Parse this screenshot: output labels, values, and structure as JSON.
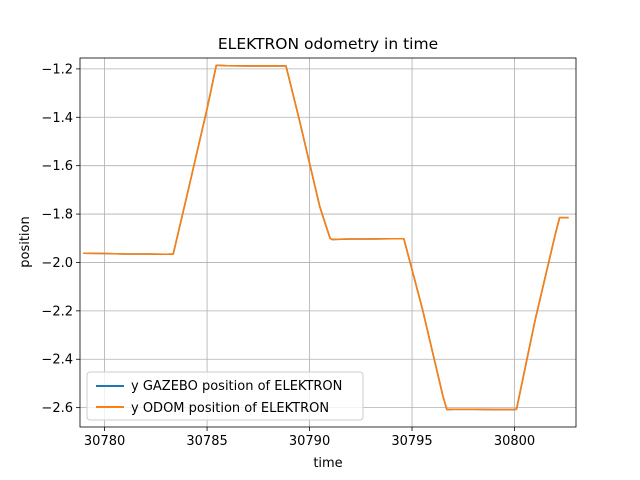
{
  "chart_data": {
    "type": "line",
    "title": "ELEKTRON odometry in time",
    "xlabel": "time",
    "ylabel": "position",
    "xlim": [
      30778.8,
      30803.0
    ],
    "ylim": [
      -2.68,
      -1.155
    ],
    "xticks": [
      30780,
      30785,
      30790,
      30795,
      30800
    ],
    "xtick_labels": [
      "30780",
      "30785",
      "30790",
      "30795",
      "30800"
    ],
    "yticks": [
      -1.2,
      -1.4,
      -1.6,
      -1.8,
      -2.0,
      -2.2,
      -2.4,
      -2.6
    ],
    "ytick_labels": [
      "−1.2",
      "−1.4",
      "−1.6",
      "−1.8",
      "−2.0",
      "−2.2",
      "−2.4",
      "−2.6"
    ],
    "grid": true,
    "legend_position": "lower-left",
    "series": [
      {
        "name": "y GAZEBO position of ELEKTRON",
        "color": "#1f77b4",
        "x": [
          30779.0,
          30780.0,
          30781.0,
          30782.0,
          30783.0,
          30783.35,
          30784.0,
          30785.0,
          30785.45,
          30786.0,
          30787.0,
          30788.0,
          30788.85,
          30789.5,
          30790.5,
          30791.0,
          30791.1,
          30792.0,
          30793.0,
          30794.0,
          30794.6,
          30795.5,
          30796.5,
          30796.7,
          30797.0,
          30798.0,
          30799.0,
          30800.0,
          30800.1,
          30801.0,
          30802.0,
          30802.2,
          30802.6
        ],
        "y": [
          -1.962,
          -1.963,
          -1.965,
          -1.965,
          -1.966,
          -1.965,
          -1.73,
          -1.365,
          -1.185,
          -1.187,
          -1.188,
          -1.188,
          -1.188,
          -1.41,
          -1.77,
          -1.9,
          -1.905,
          -1.903,
          -1.903,
          -1.902,
          -1.902,
          -2.19,
          -2.55,
          -2.608,
          -2.607,
          -2.607,
          -2.608,
          -2.608,
          -2.606,
          -2.24,
          -1.88,
          -1.815,
          -1.815
        ]
      },
      {
        "name": "y ODOM position of ELEKTRON",
        "color": "#ff7f0e",
        "x": [
          30779.0,
          30780.0,
          30781.0,
          30782.0,
          30783.0,
          30783.35,
          30784.0,
          30785.0,
          30785.45,
          30786.0,
          30787.0,
          30788.0,
          30788.85,
          30789.5,
          30790.5,
          30791.0,
          30791.1,
          30792.0,
          30793.0,
          30794.0,
          30794.6,
          30795.5,
          30796.5,
          30796.7,
          30797.0,
          30798.0,
          30799.0,
          30800.0,
          30800.1,
          30801.0,
          30802.0,
          30802.2,
          30802.6
        ],
        "y": [
          -1.962,
          -1.963,
          -1.965,
          -1.965,
          -1.966,
          -1.965,
          -1.73,
          -1.365,
          -1.185,
          -1.187,
          -1.188,
          -1.188,
          -1.188,
          -1.41,
          -1.77,
          -1.9,
          -1.905,
          -1.903,
          -1.903,
          -1.902,
          -1.902,
          -2.19,
          -2.55,
          -2.608,
          -2.607,
          -2.607,
          -2.608,
          -2.608,
          -2.606,
          -2.24,
          -1.88,
          -1.815,
          -1.815
        ]
      }
    ]
  }
}
